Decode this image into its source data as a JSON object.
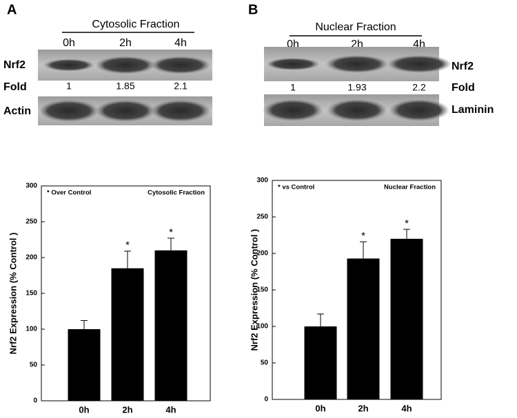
{
  "blots": [
    {
      "panel_label": "A",
      "fraction": "Cytosolic Fraction",
      "lanes": [
        "0h",
        "2h",
        "4h"
      ],
      "target": "Nrf2",
      "fold_label": "Fold",
      "loading": "Actin",
      "fold": [
        1,
        1.85,
        2.1
      ]
    },
    {
      "panel_label": "B",
      "fraction": "Nuclear Fraction",
      "lanes": [
        "0h",
        "2h",
        "4h"
      ],
      "target": "Nrf2",
      "fold_label": "Fold",
      "loading": "Laminin",
      "fold": [
        1,
        1.93,
        2.2
      ]
    }
  ],
  "chart_data": [
    {
      "type": "bar",
      "ylabel": "Nrf2 Expression (% Control )",
      "annotation_left": "* Over Control",
      "annotation_right": "Cytosolic Fraction",
      "categories": [
        "0h",
        "2h",
        "4h"
      ],
      "values": [
        100,
        185,
        210
      ],
      "errors": [
        12,
        24,
        17
      ],
      "significance": [
        null,
        "*",
        "*"
      ],
      "color": "#000000",
      "ylim": [
        0,
        300
      ],
      "yticks": [
        0,
        50,
        100,
        150,
        200,
        250,
        300
      ]
    },
    {
      "type": "bar",
      "ylabel": "Nrf2 Expression (% Control )",
      "annotation_left": "* vs Control",
      "annotation_right": "Nuclear Fraction",
      "categories": [
        "0h",
        "2h",
        "4h"
      ],
      "values": [
        100,
        193,
        220
      ],
      "errors": [
        17,
        23,
        13
      ],
      "significance": [
        null,
        "*",
        "*"
      ],
      "color": "#000000",
      "ylim": [
        0,
        300
      ],
      "yticks": [
        0,
        50,
        100,
        150,
        200,
        250,
        300
      ]
    }
  ]
}
